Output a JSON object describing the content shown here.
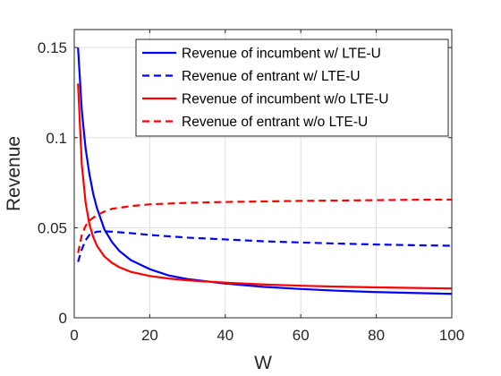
{
  "chart_data": {
    "type": "line",
    "title": "",
    "xlabel": "W",
    "ylabel": "Revenue",
    "xlim": [
      0,
      100
    ],
    "ylim": [
      0,
      0.16
    ],
    "xticks": [
      0,
      20,
      40,
      60,
      80,
      100
    ],
    "xtick_labels": [
      "0",
      "20",
      "40",
      "60",
      "80",
      "100"
    ],
    "yticks": [
      0,
      0.05,
      0.1,
      0.15
    ],
    "ytick_labels": [
      "0",
      "0.05",
      "0.1",
      "0.15"
    ],
    "grid": true,
    "legend_position": "top-right",
    "series": [
      {
        "name": "Revenue of incumbent w/ LTE-U",
        "color": "#0000ff",
        "dash": "solid",
        "x": [
          1,
          2,
          3,
          4,
          5,
          6,
          8,
          10,
          12,
          15,
          20,
          25,
          30,
          40,
          50,
          60,
          70,
          80,
          90,
          100
        ],
        "y": [
          0.15,
          0.115,
          0.094,
          0.08,
          0.069,
          0.061,
          0.049,
          0.042,
          0.037,
          0.032,
          0.027,
          0.0235,
          0.0215,
          0.019,
          0.0172,
          0.016,
          0.015,
          0.0143,
          0.0138,
          0.0133
        ]
      },
      {
        "name": "Revenue of entrant w/ LTE-U",
        "color": "#0000ff",
        "dash": "dashed",
        "x": [
          1,
          2,
          3,
          4,
          5,
          6,
          8,
          10,
          15,
          20,
          30,
          40,
          50,
          60,
          70,
          80,
          90,
          100
        ],
        "y": [
          0.031,
          0.038,
          0.043,
          0.046,
          0.047,
          0.0478,
          0.048,
          0.0478,
          0.047,
          0.046,
          0.0445,
          0.0435,
          0.0425,
          0.0418,
          0.0412,
          0.0407,
          0.0403,
          0.04
        ]
      },
      {
        "name": "Revenue of incumbent w/o LTE-U",
        "color": "#ff0000",
        "dash": "solid",
        "x": [
          1,
          2,
          3,
          4,
          5,
          6,
          8,
          10,
          12,
          15,
          20,
          25,
          30,
          40,
          50,
          60,
          70,
          80,
          90,
          100
        ],
        "y": [
          0.13,
          0.085,
          0.064,
          0.052,
          0.045,
          0.04,
          0.034,
          0.0305,
          0.028,
          0.0255,
          0.0232,
          0.0218,
          0.0208,
          0.0195,
          0.0185,
          0.0178,
          0.0173,
          0.0169,
          0.0166,
          0.0163
        ]
      },
      {
        "name": "Revenue of entrant w/o LTE-U",
        "color": "#ff0000",
        "dash": "dashed",
        "x": [
          1,
          2,
          3,
          4,
          5,
          6,
          8,
          10,
          15,
          20,
          30,
          40,
          50,
          60,
          70,
          80,
          90,
          100
        ],
        "y": [
          0.036,
          0.046,
          0.051,
          0.054,
          0.0555,
          0.057,
          0.059,
          0.0605,
          0.062,
          0.063,
          0.0638,
          0.0643,
          0.0646,
          0.0649,
          0.0651,
          0.0653,
          0.0655,
          0.0656
        ]
      }
    ]
  }
}
